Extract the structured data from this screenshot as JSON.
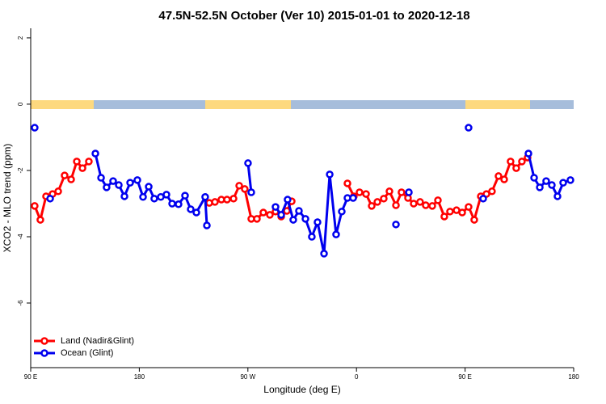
{
  "chart_data": {
    "type": "line",
    "title": "47.5N-52.5N October (Ver 10)   2015-01-01 to 2020-12-18",
    "x_label": "Longitude (deg E)",
    "y_label": "XCO2 - MLO trend (ppm)",
    "xlim": [
      90,
      540
    ],
    "xticks": [
      {
        "value": 90,
        "label": "90 E"
      },
      180,
      {
        "value": 270,
        "label": "90 W"
      },
      {
        "value": 360,
        "label": "0"
      },
      {
        "value": 450,
        "label": "90 E"
      },
      {
        "value": 540,
        "label": "180"
      }
    ],
    "ylim": [
      -7.95,
      2.29
    ],
    "yticks": [
      2,
      0,
      -2,
      -4,
      -6
    ],
    "legend": "bottom-left",
    "series": [
      {
        "name": "Land (Nadir&Glint)",
        "color": "#ff0000",
        "x": [
          93.3,
          98.0,
          102.7,
          108.1,
          112.8,
          118.1,
          123.5,
          128.2,
          132.9,
          138.2,
          null,
          238.0,
          242.7,
          248.0,
          252.7,
          258.1,
          262.8,
          267.4,
          272.8,
          277.5,
          282.8,
          288.2,
          292.9,
          297.6,
          302.3,
          306.3,
          null,
          352.5,
          357.8,
          362.5,
          367.9,
          372.6,
          377.3,
          382.6,
          387.3,
          392.7,
          397.3,
          402.7,
          407.4,
          412.7,
          417.4,
          422.8,
          427.5,
          432.8,
          437.5,
          442.9,
          447.6,
          452.9,
          457.6,
          463.0,
          467.7,
          472.3,
          477.7,
          482.4,
          487.7,
          492.4,
          497.1,
          501.8
        ],
        "values": [
          -3.07,
          -3.49,
          -2.78,
          -2.71,
          -2.63,
          -2.15,
          -2.27,
          -1.73,
          -1.93,
          -1.73,
          null,
          -2.98,
          -2.95,
          -2.88,
          -2.88,
          -2.85,
          -2.46,
          -2.56,
          -3.46,
          -3.46,
          -3.27,
          -3.34,
          -3.24,
          -3.39,
          -3.22,
          -2.93,
          null,
          -2.39,
          -2.78,
          -2.66,
          -2.71,
          -3.07,
          -2.95,
          -2.85,
          -2.63,
          -3.05,
          -2.66,
          -2.83,
          -3.0,
          -2.95,
          -3.05,
          -3.07,
          -2.9,
          -3.39,
          -3.24,
          -3.2,
          -3.27,
          -3.1,
          -3.49,
          -2.78,
          -2.71,
          -2.63,
          -2.17,
          -2.27,
          -1.73,
          -1.93,
          -1.73,
          -1.61
        ]
      },
      {
        "name": "Ocean (Glint)",
        "color": "#0000ee",
        "x": [
          93.3,
          null,
          106.1,
          null,
          143.6,
          148.3,
          152.9,
          158.3,
          163.0,
          167.7,
          172.4,
          178.4,
          183.1,
          187.8,
          192.4,
          197.8,
          202.5,
          207.2,
          212.5,
          217.9,
          222.6,
          227.3,
          234.6,
          236.0,
          null,
          270.1,
          272.8,
          null,
          292.9,
          297.6,
          302.9,
          307.6,
          312.3,
          317.7,
          323.0,
          327.7,
          333.1,
          337.8,
          343.1,
          347.8,
          352.5,
          357.2,
          null,
          392.7,
          null,
          403.4,
          null,
          452.9,
          null,
          465.0,
          null,
          502.5,
          507.2,
          511.9,
          517.2,
          521.9,
          526.6,
          531.3,
          537.3
        ],
        "values": [
          -0.71,
          null,
          -2.85,
          null,
          -1.49,
          -2.22,
          -2.51,
          -2.32,
          -2.44,
          -2.78,
          -2.37,
          -2.29,
          -2.8,
          -2.49,
          -2.85,
          -2.8,
          -2.73,
          -3.0,
          -3.02,
          -2.76,
          -3.17,
          -3.27,
          -2.8,
          -3.66,
          null,
          -1.78,
          -2.66,
          null,
          -3.1,
          -3.34,
          -2.88,
          -3.49,
          -3.22,
          -3.46,
          -4.0,
          -3.56,
          -4.51,
          -2.12,
          -3.93,
          -3.24,
          -2.83,
          -2.83,
          null,
          -3.63,
          null,
          -2.66,
          null,
          -0.71,
          null,
          -2.85,
          null,
          -1.49,
          -2.22,
          -2.51,
          -2.32,
          -2.44,
          -2.78,
          -2.37,
          -2.29
        ]
      }
    ]
  }
}
